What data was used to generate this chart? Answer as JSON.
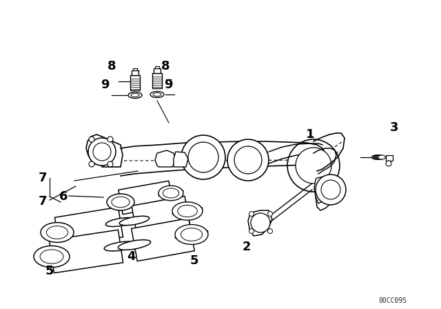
{
  "background_color": "#ffffff",
  "line_color": "#000000",
  "watermark": "00CC095",
  "figsize": [
    6.4,
    4.48
  ],
  "dpi": 100,
  "labels": [
    [
      "1",
      450,
      195,
      14
    ],
    [
      "2",
      355,
      355,
      14
    ],
    [
      "3",
      570,
      185,
      14
    ],
    [
      "4",
      190,
      370,
      14
    ],
    [
      "5",
      75,
      390,
      14
    ],
    [
      "5",
      285,
      375,
      14
    ],
    [
      "6",
      95,
      285,
      14
    ],
    [
      "7",
      65,
      258,
      14
    ],
    [
      "7",
      65,
      290,
      14
    ],
    [
      "8",
      165,
      95,
      14
    ],
    [
      "8",
      240,
      95,
      14
    ],
    [
      "9",
      155,
      122,
      14
    ],
    [
      "9",
      243,
      122,
      14
    ]
  ]
}
